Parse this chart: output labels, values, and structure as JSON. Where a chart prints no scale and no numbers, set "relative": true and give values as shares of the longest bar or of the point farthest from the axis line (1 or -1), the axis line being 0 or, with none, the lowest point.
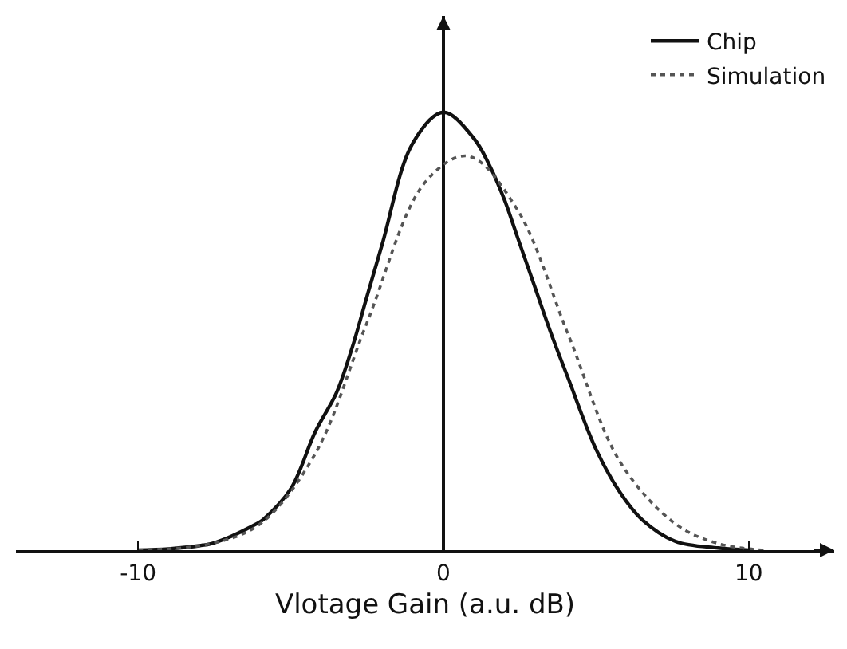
{
  "chart_data": {
    "type": "line",
    "xlabel": "Vlotage Gain (a.u. dB)",
    "relative": true,
    "legend": "top right",
    "xlim": [
      -14,
      12.8
    ],
    "xticks": [
      -10,
      0,
      10
    ],
    "series": [
      {
        "name": "Chip",
        "color": "#111111",
        "line_style": "solid",
        "x": [
          -10,
          -9,
          -8,
          -7.6,
          -7,
          -6,
          -5.9,
          -5,
          -4.2,
          -3.5,
          -3,
          -2.5,
          -2,
          -1,
          0,
          1,
          1.5,
          2,
          2.4,
          3,
          3.5,
          4.1,
          5,
          5.8,
          6.5,
          7.6,
          9,
          10
        ],
        "values": [
          0,
          0.003,
          0.01,
          0.015,
          0.03,
          0.065,
          0.07,
          0.14,
          0.27,
          0.36,
          0.46,
          0.58,
          0.7,
          0.93,
          1,
          0.94,
          0.88,
          0.8,
          0.72,
          0.6,
          0.5,
          0.39,
          0.23,
          0.13,
          0.07,
          0.02,
          0.005,
          0
        ]
      },
      {
        "name": "Simulation",
        "color": "#555555",
        "line_style": "dotted",
        "x": [
          -10,
          -7.6,
          -6,
          -4.2,
          -2.5,
          -0.6,
          0.8,
          2.4,
          4.1,
          5.8,
          7.6,
          9,
          10.5
        ],
        "values": [
          0,
          0.015,
          0.06,
          0.22,
          0.52,
          0.84,
          0.9,
          0.78,
          0.49,
          0.2,
          0.06,
          0.015,
          0
        ]
      }
    ]
  }
}
